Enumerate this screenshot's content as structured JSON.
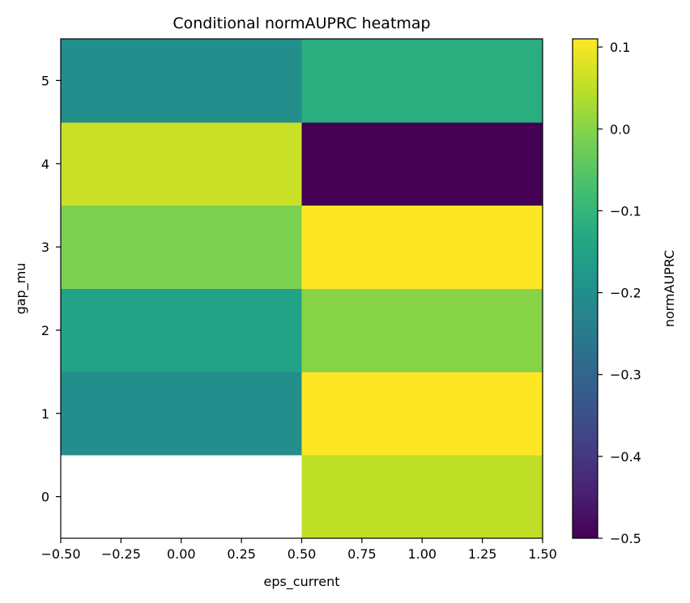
{
  "chart_data": {
    "type": "heatmap",
    "title": "Conditional normAUPRC heatmap",
    "xlabel": "eps_current",
    "ylabel": "gap_mu",
    "xlim": [
      -0.5,
      1.5
    ],
    "ylim": [
      -0.5,
      5.5
    ],
    "x_ticks": [
      -0.5,
      -0.25,
      0.0,
      0.25,
      0.5,
      0.75,
      1.0,
      1.25,
      1.5
    ],
    "x_tick_labels": [
      "−0.50",
      "−0.25",
      "0.00",
      "0.25",
      "0.50",
      "0.75",
      "1.00",
      "1.25",
      "1.50"
    ],
    "y_ticks": [
      0,
      1,
      2,
      3,
      4,
      5
    ],
    "y_tick_labels": [
      "0",
      "1",
      "2",
      "3",
      "4",
      "5"
    ],
    "x_edges": [
      -0.5,
      0.5,
      1.5
    ],
    "y_rows": [
      0,
      1,
      2,
      3,
      4,
      5
    ],
    "values": [
      [
        null,
        0.05
      ],
      [
        -0.2,
        0.11
      ],
      [
        -0.15,
        0.0
      ],
      [
        -0.01,
        0.11
      ],
      [
        0.06,
        -0.5
      ],
      [
        -0.2,
        -0.12
      ]
    ],
    "colormap": "viridis",
    "colorbar": {
      "label": "normAUPRC",
      "vmin": -0.5,
      "vmax": 0.11,
      "ticks": [
        0.1,
        0.0,
        -0.1,
        -0.2,
        -0.3,
        -0.4,
        -0.5
      ],
      "tick_labels": [
        "0.1",
        "0.0",
        "−0.1",
        "−0.2",
        "−0.3",
        "−0.4",
        "−0.5"
      ]
    },
    "missing_color": "#ffffff"
  }
}
